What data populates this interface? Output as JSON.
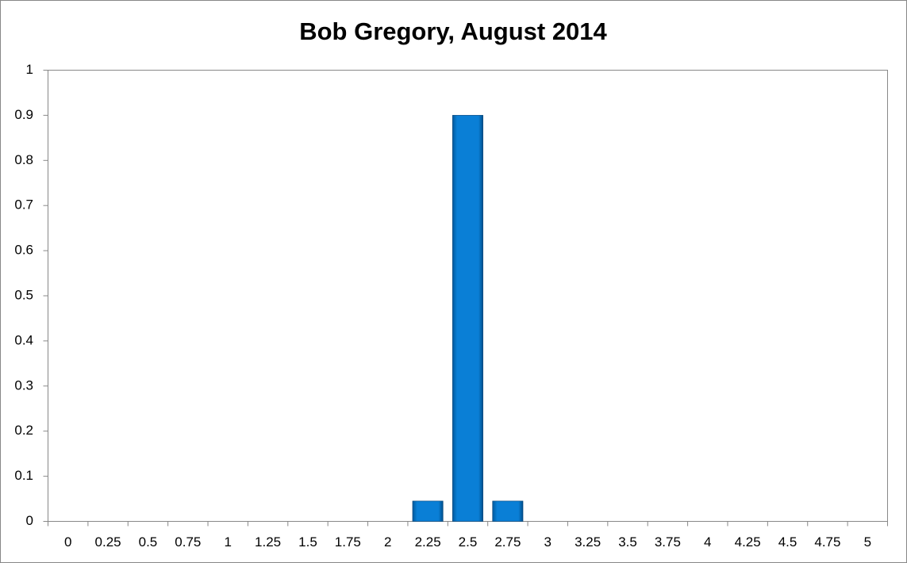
{
  "chart_data": {
    "type": "bar",
    "title": "Bob Gregory, August 2014",
    "categories": [
      "0",
      "0.25",
      "0.5",
      "0.75",
      "1",
      "1.25",
      "1.5",
      "1.75",
      "2",
      "2.25",
      "2.5",
      "2.75",
      "3",
      "3.25",
      "3.5",
      "3.75",
      "4",
      "4.25",
      "4.5",
      "4.75",
      "5"
    ],
    "values": [
      0,
      0,
      0,
      0,
      0,
      0,
      0,
      0,
      0,
      0.045,
      0.9,
      0.045,
      0,
      0,
      0,
      0,
      0,
      0,
      0,
      0,
      0
    ],
    "color": "#0070c0",
    "ylim": [
      0,
      1
    ],
    "yticks": [
      0,
      0.1,
      0.2,
      0.3,
      0.4,
      0.5,
      0.6,
      0.7,
      0.8,
      0.9,
      1
    ],
    "grid": false
  }
}
